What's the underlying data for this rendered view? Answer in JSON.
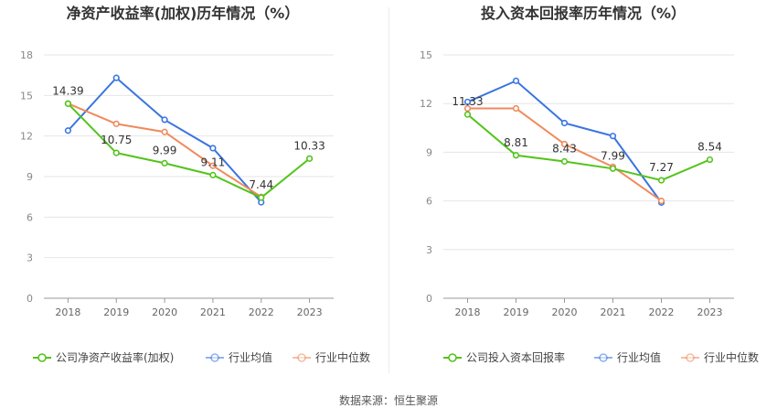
{
  "source": "数据来源：恒生聚源",
  "colors": {
    "company": "#52c41a",
    "avg": "#3a75e0",
    "median": "#f08a5d"
  },
  "chart_data": [
    {
      "type": "line",
      "title": "净资产收益率(加权)历年情况（%）",
      "categories": [
        "2018",
        "2019",
        "2020",
        "2021",
        "2022",
        "2023"
      ],
      "ylim": [
        0,
        18
      ],
      "yticks": [
        0,
        3,
        6,
        9,
        12,
        15,
        18
      ],
      "grid": true,
      "legend_position": "bottom",
      "series": [
        {
          "name": "公司净资产收益率(加权)",
          "key": "company",
          "values": [
            14.39,
            10.75,
            9.99,
            9.11,
            7.44,
            10.33
          ],
          "labels": [
            "14.39",
            "10.75",
            "9.99",
            "9.11",
            "7.44",
            "10.33"
          ]
        },
        {
          "name": "行业均值",
          "key": "avg",
          "values": [
            12.4,
            16.3,
            13.2,
            11.1,
            7.1,
            null
          ]
        },
        {
          "name": "行业中位数",
          "key": "median",
          "values": [
            14.4,
            12.9,
            12.3,
            9.8,
            7.5,
            null
          ]
        }
      ]
    },
    {
      "type": "line",
      "title": "投入资本回报率历年情况（%）",
      "categories": [
        "2018",
        "2019",
        "2020",
        "2021",
        "2022",
        "2023"
      ],
      "ylim": [
        0,
        15
      ],
      "yticks": [
        0,
        3,
        6,
        9,
        12,
        15
      ],
      "grid": true,
      "legend_position": "bottom",
      "series": [
        {
          "name": "公司投入资本回报率",
          "key": "company",
          "values": [
            11.33,
            8.81,
            8.43,
            7.99,
            7.27,
            8.54
          ],
          "labels": [
            "11.33",
            "8.81",
            "8.43",
            "7.99",
            "7.27",
            "8.54"
          ]
        },
        {
          "name": "行业均值",
          "key": "avg",
          "values": [
            12.1,
            13.4,
            10.8,
            10.0,
            5.9,
            null
          ]
        },
        {
          "name": "行业中位数",
          "key": "median",
          "values": [
            11.7,
            11.7,
            9.5,
            8.1,
            6.0,
            null
          ]
        }
      ]
    }
  ]
}
